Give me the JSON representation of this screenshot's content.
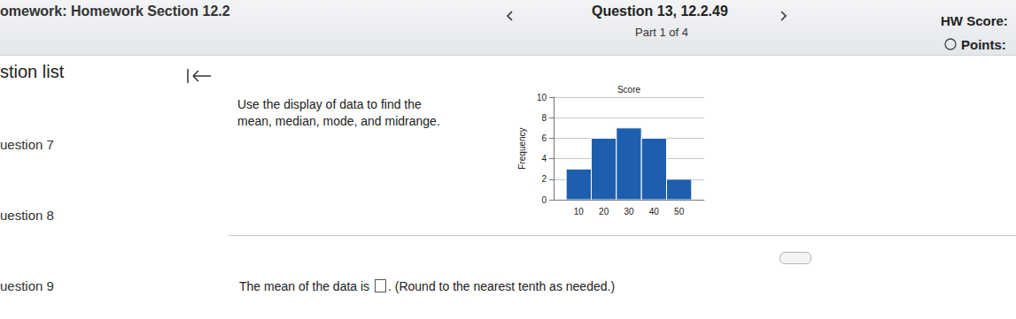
{
  "header": {
    "section": "omework: Homework Section 12.2",
    "question": "Question 13, 12.2.49",
    "part": "Part 1 of 4",
    "hw_score": "HW Score:",
    "points": "Points:"
  },
  "sidebar": {
    "title": "stion list",
    "items": [
      "uestion 7",
      "uestion 8",
      "uestion 9"
    ]
  },
  "question": {
    "lines": [
      "Use the display of data to find the",
      "mean, median, mode, and midrange."
    ]
  },
  "answer": {
    "before": "The mean of the data is",
    "after": ". (Round to the nearest tenth as needed.)"
  },
  "chart_data": {
    "type": "histogram",
    "title": "Score",
    "y_label": "Frequency",
    "bins": [
      5,
      15,
      25,
      35,
      45,
      55
    ],
    "values": [
      3,
      6,
      7,
      6,
      2
    ],
    "color": "#1d5fae",
    "xlim": [
      0,
      60
    ],
    "xticks": [
      10,
      20,
      30,
      40,
      50
    ],
    "ylim": [
      0,
      10
    ],
    "yticks": [
      0,
      2,
      4,
      6,
      8,
      10
    ],
    "grid": true
  }
}
